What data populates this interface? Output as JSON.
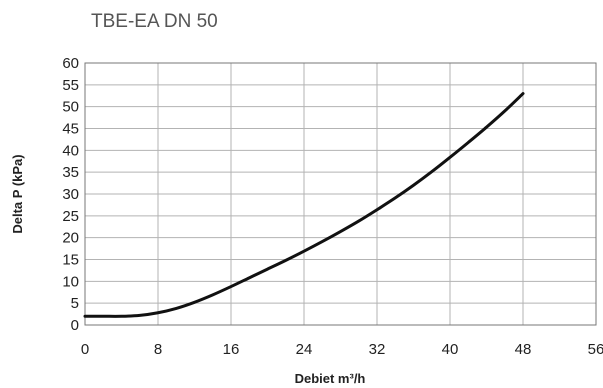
{
  "chart_data": {
    "type": "line",
    "title": "TBE-EA DN 50",
    "xlabel": "Debiet m³/h",
    "ylabel": "Delta P (kPa)",
    "xlim": [
      0,
      56
    ],
    "ylim": [
      0,
      60
    ],
    "xticks": [
      "0",
      "8",
      "16",
      "24",
      "32",
      "40",
      "48",
      "56"
    ],
    "yticks": [
      "0",
      "5",
      "10",
      "15",
      "20",
      "25",
      "30",
      "35",
      "40",
      "45",
      "50",
      "55",
      "60"
    ],
    "grid": true,
    "series": [
      {
        "color": "#111111",
        "x": [
          0,
          2,
          4,
          6,
          8,
          10,
          12,
          14,
          16,
          18,
          20,
          22,
          24,
          26,
          28,
          30,
          32,
          34,
          36,
          38,
          40,
          42,
          44,
          46,
          48
        ],
        "y": [
          2.0,
          2.0,
          2.0,
          2.2,
          2.8,
          3.8,
          5.2,
          6.9,
          8.8,
          10.8,
          12.8,
          14.8,
          16.9,
          19.1,
          21.4,
          23.8,
          26.4,
          29.1,
          32.0,
          35.1,
          38.4,
          41.8,
          45.3,
          49.0,
          53.0
        ]
      }
    ]
  }
}
